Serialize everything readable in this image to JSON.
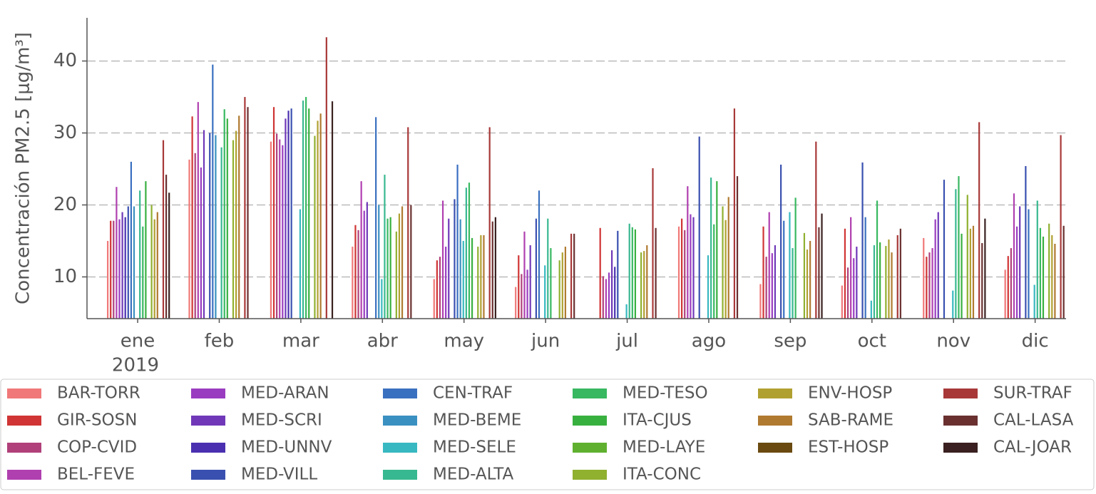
{
  "chart_data": {
    "type": "bar",
    "y_label": "Concentración PM2.5 [μg/m³]",
    "categories": [
      "ene",
      "feb",
      "mar",
      "abr",
      "may",
      "jun",
      "jul",
      "ago",
      "sep",
      "oct",
      "nov",
      "dic"
    ],
    "year_label": "2019",
    "ylim": [
      4.2,
      46
    ],
    "yticks": [
      10,
      20,
      30,
      40
    ],
    "grid": true,
    "series": [
      {
        "name": "BAR-TORR",
        "color": "#f07878",
        "values": [
          15,
          26.3,
          28.8,
          14.2,
          9.7,
          8.6,
          null,
          17,
          9,
          8.8,
          15.4,
          11
        ]
      },
      {
        "name": "GIR-SOSN",
        "color": "#d03434",
        "values": [
          17.8,
          32.3,
          33.6,
          17.2,
          12.3,
          13,
          16.8,
          18.1,
          17,
          16.7,
          12.8,
          12.9
        ]
      },
      {
        "name": "COP-CVID",
        "color": "#b0407a",
        "values": [
          17.8,
          27.2,
          29.9,
          16.5,
          12.8,
          10.4,
          10.1,
          16.5,
          12.8,
          11.3,
          13.4,
          14
        ]
      },
      {
        "name": "BEL-FEVE",
        "color": "#b040b0",
        "values": [
          22.5,
          34.3,
          29.1,
          23.3,
          20.6,
          16.3,
          9.7,
          22.6,
          19,
          18.3,
          14,
          21.6
        ]
      },
      {
        "name": "MED-ARAN",
        "color": "#9a3cc0",
        "values": [
          18,
          25.2,
          28.3,
          19.2,
          14.2,
          11,
          10.6,
          18.7,
          13.3,
          12.6,
          18,
          17
        ]
      },
      {
        "name": "MED-SCRI",
        "color": "#7038b8",
        "values": [
          19,
          30.4,
          32,
          20.4,
          18.1,
          14.4,
          13.7,
          18.3,
          14.4,
          14.2,
          19,
          19.8
        ]
      },
      {
        "name": "MED-UNNV",
        "color": "#4a30b0",
        "values": [
          18.3,
          null,
          33.1,
          null,
          null,
          null,
          11.4,
          null,
          null,
          null,
          null,
          null
        ]
      },
      {
        "name": "MED-VILL",
        "color": "#3a50b0",
        "values": [
          19.8,
          30,
          33.4,
          null,
          20.8,
          18.1,
          16.4,
          29.5,
          25.6,
          25.9,
          23.5,
          25.4
        ]
      },
      {
        "name": "CEN-TRAF",
        "color": "#3a70c0",
        "values": [
          26,
          39.5,
          null,
          32.2,
          25.6,
          22,
          null,
          null,
          17.8,
          18.3,
          null,
          19.4
        ]
      },
      {
        "name": "MED-BEME",
        "color": "#3a90c0",
        "values": [
          19.8,
          29.7,
          null,
          20,
          18,
          null,
          null,
          null,
          null,
          null,
          null,
          null
        ]
      },
      {
        "name": "MED-SELE",
        "color": "#38b8c0",
        "values": [
          null,
          null,
          19.4,
          9.7,
          15,
          11.6,
          6.2,
          13,
          19,
          6.7,
          8.1,
          8.9
        ]
      },
      {
        "name": "MED-ALTA",
        "color": "#38b890",
        "values": [
          22,
          28,
          34.5,
          24.2,
          22.4,
          18.1,
          17.4,
          23.8,
          14,
          14.4,
          22.2,
          20.6
        ]
      },
      {
        "name": "MED-TESO",
        "color": "#38b860",
        "values": [
          17,
          33.3,
          35,
          18.1,
          23.1,
          14,
          16.9,
          17.3,
          21,
          20.6,
          24,
          16.8
        ]
      },
      {
        "name": "ITA-CJUS",
        "color": "#38b040",
        "values": [
          23.3,
          32,
          33.4,
          18.3,
          15.4,
          null,
          16.6,
          23.3,
          null,
          14.8,
          16,
          15.6
        ]
      },
      {
        "name": "MED-LAYE",
        "color": "#60b030",
        "values": [
          null,
          null,
          null,
          null,
          null,
          null,
          null,
          null,
          null,
          null,
          null,
          null
        ]
      },
      {
        "name": "ITA-CONC",
        "color": "#90b030",
        "values": [
          20,
          29,
          29.6,
          16.3,
          14.2,
          12.3,
          13.4,
          19.8,
          16.1,
          14.3,
          21.4,
          17.4
        ]
      },
      {
        "name": "ENV-HOSP",
        "color": "#b0a030",
        "values": [
          18,
          30.3,
          31.7,
          18.8,
          15.8,
          13.4,
          13.6,
          17.9,
          13.8,
          15.2,
          16.7,
          15.8
        ]
      },
      {
        "name": "SAB-RAME",
        "color": "#b07a30",
        "values": [
          19,
          32.4,
          32.7,
          19.8,
          15.8,
          14.2,
          14.4,
          21.1,
          15,
          13.4,
          17.1,
          14.6
        ]
      },
      {
        "name": "EST-HOSP",
        "color": "#6a4a10",
        "values": [
          null,
          null,
          null,
          null,
          null,
          null,
          null,
          null,
          null,
          null,
          null,
          null
        ]
      },
      {
        "name": "SUR-TRAF",
        "color": "#a83838",
        "values": [
          29,
          35,
          43.3,
          30.8,
          30.8,
          16,
          25.1,
          33.4,
          28.8,
          15.8,
          31.5,
          29.7
        ]
      },
      {
        "name": "CAL-LASA",
        "color": "#6a3030",
        "values": [
          24.2,
          33.6,
          null,
          20,
          17.7,
          16,
          16.8,
          24,
          16.9,
          16.7,
          14.7,
          17.1
        ]
      },
      {
        "name": "CAL-JOAR",
        "color": "#3a2020",
        "values": [
          21.7,
          null,
          34.4,
          null,
          18.3,
          null,
          null,
          null,
          18.8,
          null,
          18.1,
          null
        ]
      }
    ]
  }
}
